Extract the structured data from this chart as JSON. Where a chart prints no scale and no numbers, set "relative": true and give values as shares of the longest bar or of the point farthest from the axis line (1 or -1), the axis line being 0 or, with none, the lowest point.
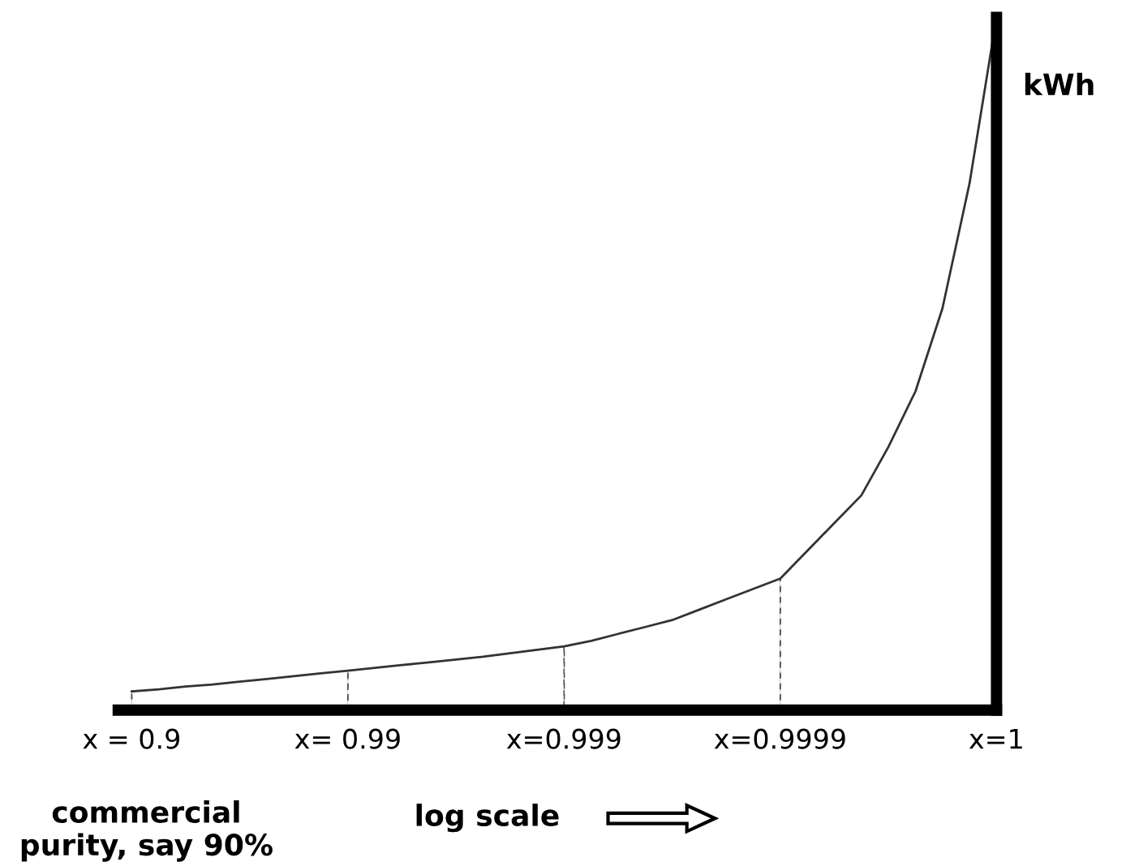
{
  "chart_data": {
    "type": "line",
    "relative": true,
    "xlabel": "log scale",
    "ylabel": "kWh",
    "categories": [
      "x = 0.9",
      null,
      null,
      null,
      null,
      null,
      null,
      null,
      "x= 0.99",
      null,
      null,
      null,
      null,
      null,
      null,
      null,
      "x=0.999",
      null,
      null,
      null,
      null,
      null,
      null,
      null,
      "x=0.9999",
      null,
      null,
      null,
      null,
      null,
      null,
      null,
      "x=1"
    ],
    "series": [
      {
        "color": "#333333",
        "values": [
          0.027,
          0.03,
          0.034,
          0.037,
          0.041,
          0.045,
          0.049,
          0.053,
          0.057,
          0.061,
          0.065,
          0.069,
          0.073,
          0.077,
          0.082,
          0.087,
          0.092,
          0.1,
          0.11,
          0.12,
          0.13,
          0.145,
          0.16,
          0.175,
          0.19,
          0.23,
          0.27,
          0.31,
          0.38,
          0.46,
          0.58,
          0.76,
          1.0
        ]
      },
      {
        "type": "bar",
        "color": "#555555",
        "line_style": "dashed",
        "values": [
          0.027,
          null,
          null,
          null,
          null,
          null,
          null,
          null,
          0.057,
          null,
          null,
          null,
          null,
          null,
          null,
          null,
          0.092,
          null,
          null,
          null,
          null,
          null,
          null,
          null,
          0.19,
          null,
          null,
          null,
          null,
          null,
          null,
          null,
          null
        ]
      }
    ],
    "annotations": [
      "commercial\npurity, say 90%"
    ],
    "grid": false,
    "legend": false,
    "line_style": "solid",
    "marker": "none"
  }
}
